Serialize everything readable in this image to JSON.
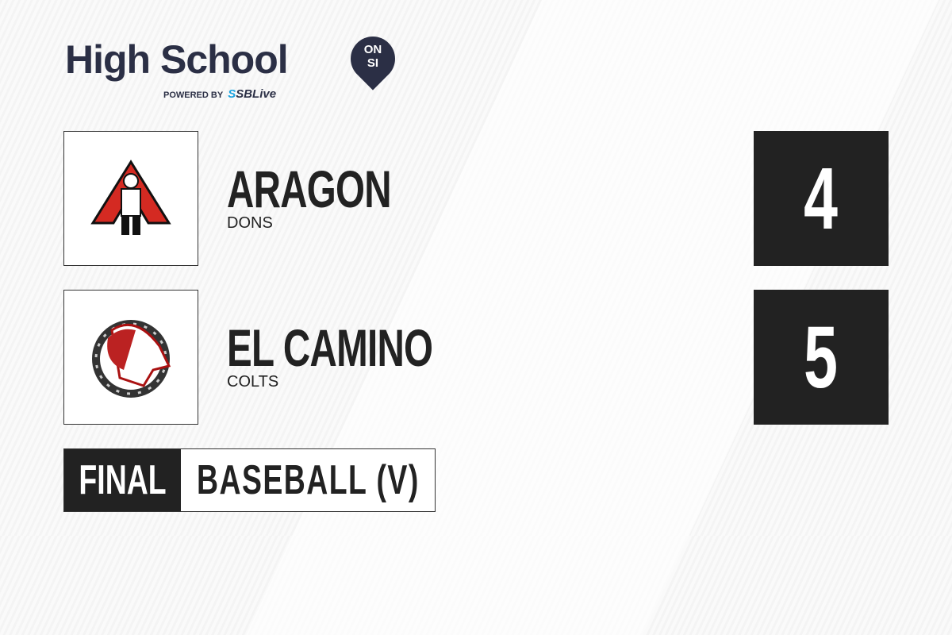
{
  "brand": {
    "title": "High School",
    "badge_top": "ON",
    "badge_bottom": "SI",
    "powered_by": "POWERED BY",
    "partner_prefix": "S",
    "partner": "SBLive"
  },
  "teams": [
    {
      "name": "ARAGON",
      "mascot": "DONS",
      "score": "4",
      "logo": "aragon-dons-logo"
    },
    {
      "name": "EL CAMINO",
      "mascot": "COLTS",
      "score": "5",
      "logo": "el-camino-colts-logo"
    }
  ],
  "status": "FINAL",
  "sport": "BASEBALL (V)",
  "colors": {
    "brand": "#2b2f45",
    "accent": "#1aa3e0",
    "dark": "#222222",
    "team_red": "#d42a22"
  }
}
